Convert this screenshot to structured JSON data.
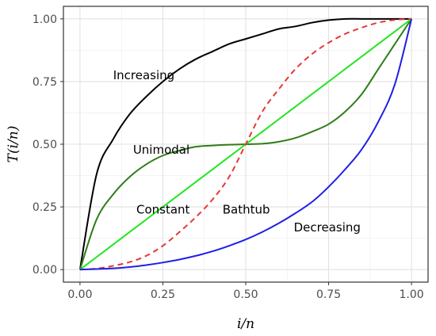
{
  "chart_data": {
    "type": "line",
    "title": "",
    "xlabel": "i/n",
    "ylabel": "T(i/n)",
    "xlim": [
      -0.05,
      1.05
    ],
    "ylim": [
      -0.05,
      1.05
    ],
    "xticks": [
      "0.00",
      "0.25",
      "0.50",
      "0.75",
      "1.00"
    ],
    "yticks": [
      "0.00",
      "0.25",
      "0.50",
      "0.75",
      "1.00"
    ],
    "grid": true,
    "legend": "none",
    "x": [
      0,
      0.05,
      0.1,
      0.15,
      0.2,
      0.25,
      0.3,
      0.35,
      0.4,
      0.45,
      0.5,
      0.55,
      0.6,
      0.65,
      0.7,
      0.75,
      0.8,
      0.85,
      0.9,
      0.95,
      1.0
    ],
    "series": [
      {
        "name": "Increasing",
        "color": "#000000",
        "dash": "solid",
        "values": [
          0,
          0.38,
          0.52,
          0.62,
          0.69,
          0.75,
          0.8,
          0.84,
          0.87,
          0.9,
          0.92,
          0.94,
          0.96,
          0.97,
          0.985,
          0.995,
          1.0,
          1.0,
          1.0,
          1.0,
          1.0
        ]
      },
      {
        "name": "Unimodal",
        "color": "#2e7d1a",
        "dash": "solid",
        "values": [
          0,
          0.2,
          0.3,
          0.37,
          0.42,
          0.455,
          0.475,
          0.49,
          0.495,
          0.498,
          0.5,
          0.502,
          0.51,
          0.525,
          0.55,
          0.58,
          0.63,
          0.7,
          0.8,
          0.9,
          1.0
        ]
      },
      {
        "name": "Constant",
        "color": "#22e622",
        "dash": "solid",
        "values": [
          0,
          0.05,
          0.1,
          0.15,
          0.2,
          0.25,
          0.3,
          0.35,
          0.4,
          0.45,
          0.5,
          0.55,
          0.6,
          0.65,
          0.7,
          0.75,
          0.8,
          0.85,
          0.9,
          0.95,
          1.0
        ]
      },
      {
        "name": "Bathtub",
        "color": "#e53935",
        "dash": "dashed",
        "values": [
          0,
          0.004,
          0.015,
          0.03,
          0.055,
          0.095,
          0.15,
          0.21,
          0.28,
          0.37,
          0.5,
          0.63,
          0.72,
          0.8,
          0.86,
          0.905,
          0.94,
          0.965,
          0.985,
          0.996,
          1.0
        ]
      },
      {
        "name": "Decreasing",
        "color": "#1f1fe6",
        "dash": "solid",
        "values": [
          0,
          0.002,
          0.005,
          0.01,
          0.018,
          0.028,
          0.04,
          0.055,
          0.073,
          0.095,
          0.12,
          0.15,
          0.185,
          0.225,
          0.27,
          0.33,
          0.4,
          0.48,
          0.59,
          0.74,
          1.0
        ]
      }
    ],
    "annotations": [
      {
        "text": "Increasing",
        "x": 0.1,
        "y": 0.775
      },
      {
        "text": "Unimodal",
        "x": 0.16,
        "y": 0.478
      },
      {
        "text": "Constant",
        "x": 0.17,
        "y": 0.24
      },
      {
        "text": "Bathtub",
        "x": 0.43,
        "y": 0.24
      },
      {
        "text": "Decreasing",
        "x": 0.645,
        "y": 0.168
      }
    ]
  }
}
